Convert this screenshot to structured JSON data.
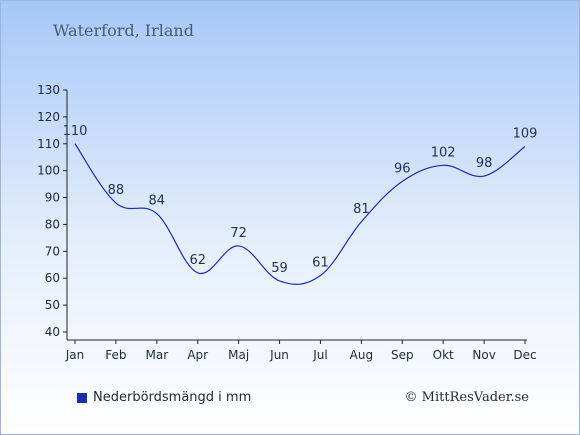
{
  "header": {
    "title": "Waterford, Irland"
  },
  "legend": {
    "label": "Nederbördsmängd i mm"
  },
  "footer": {
    "credit": "© MittResVader.se"
  },
  "chart_data": {
    "type": "line",
    "categories": [
      "Jan",
      "Feb",
      "Mar",
      "Apr",
      "Maj",
      "Jun",
      "Jul",
      "Aug",
      "Sep",
      "Okt",
      "Nov",
      "Dec"
    ],
    "series": [
      {
        "name": "Nederbördsmängd i mm",
        "values": [
          110,
          88,
          84,
          62,
          72,
          59,
          61,
          81,
          96,
          102,
          98,
          109
        ],
        "color": "#1a2ea8"
      }
    ],
    "title": "Waterford, Irland",
    "xlabel": "",
    "ylabel": "",
    "ylim": [
      40,
      130
    ],
    "yticks": [
      40,
      50,
      60,
      70,
      80,
      90,
      100,
      110,
      120,
      130
    ],
    "grid": false,
    "legend_position": "bottom-left"
  }
}
